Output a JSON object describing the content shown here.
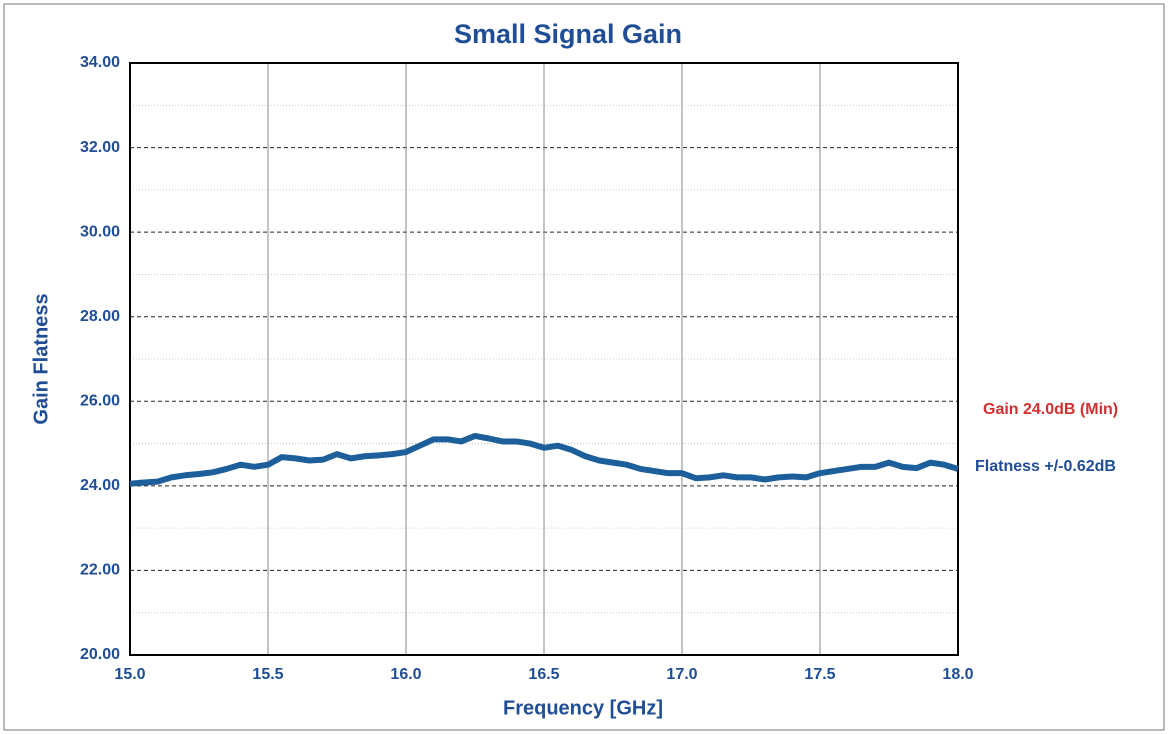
{
  "chart_data": {
    "type": "line",
    "title": "Small Signal Gain",
    "x_label": "Frequency [GHz]",
    "y_label": "Gain Flatness",
    "annotations": [
      {
        "text": "Gain 24.0dB (Min)",
        "color": "#d03030"
      },
      {
        "text": "Flatness +/-0.62dB",
        "color": "#1f4e96"
      }
    ],
    "x": [
      15.0,
      15.05,
      15.1,
      15.15,
      15.2,
      15.25,
      15.3,
      15.35,
      15.4,
      15.45,
      15.5,
      15.55,
      15.6,
      15.65,
      15.7,
      15.75,
      15.8,
      15.85,
      15.9,
      15.95,
      16.0,
      16.05,
      16.1,
      16.15,
      16.2,
      16.25,
      16.3,
      16.35,
      16.4,
      16.45,
      16.5,
      16.55,
      16.6,
      16.65,
      16.7,
      16.75,
      16.8,
      16.85,
      16.9,
      16.95,
      17.0,
      17.05,
      17.1,
      17.15,
      17.2,
      17.25,
      17.3,
      17.35,
      17.4,
      17.45,
      17.5,
      17.55,
      17.6,
      17.65,
      17.7,
      17.75,
      17.8,
      17.85,
      17.9,
      17.95,
      18.0
    ],
    "series": [
      {
        "name": "Gain",
        "color": "#1d5f9a",
        "values": [
          24.05,
          24.08,
          24.1,
          24.2,
          24.25,
          24.28,
          24.32,
          24.4,
          24.5,
          24.45,
          24.5,
          24.68,
          24.65,
          24.6,
          24.62,
          24.75,
          24.65,
          24.7,
          24.72,
          24.75,
          24.8,
          24.95,
          25.1,
          25.1,
          25.05,
          25.18,
          25.12,
          25.05,
          25.05,
          25.0,
          24.9,
          24.95,
          24.85,
          24.7,
          24.6,
          24.55,
          24.5,
          24.4,
          24.35,
          24.3,
          24.3,
          24.18,
          24.2,
          24.25,
          24.2,
          24.2,
          24.15,
          24.2,
          24.22,
          24.2,
          24.3,
          24.35,
          24.4,
          24.45,
          24.45,
          24.55,
          24.45,
          24.42,
          24.55,
          24.5,
          24.4
        ]
      }
    ],
    "xlim": [
      15.0,
      18.0
    ],
    "xticks": [
      {
        "value": 15,
        "label": "15.0"
      },
      {
        "value": 15.5,
        "label": "15.5"
      },
      {
        "value": 16,
        "label": "16.0"
      },
      {
        "value": 16.5,
        "label": "16.5"
      },
      {
        "value": 17,
        "label": "17.0"
      },
      {
        "value": 17.5,
        "label": "17.5"
      },
      {
        "value": 18,
        "label": "18.0"
      }
    ],
    "ylim": [
      20,
      34
    ],
    "yticks": [
      {
        "value": 20,
        "label": "20.00"
      },
      {
        "value": 22,
        "label": "22.00"
      },
      {
        "value": 24,
        "label": "24.00"
      },
      {
        "value": 26,
        "label": "26.00"
      },
      {
        "value": 28,
        "label": "28.00"
      },
      {
        "value": 30,
        "label": "30.00"
      },
      {
        "value": 32,
        "label": "32.00"
      },
      {
        "value": 34,
        "label": "34.00"
      }
    ],
    "minor_yticks": [
      21,
      23,
      25,
      27,
      29,
      31,
      33
    ],
    "grid": true
  }
}
